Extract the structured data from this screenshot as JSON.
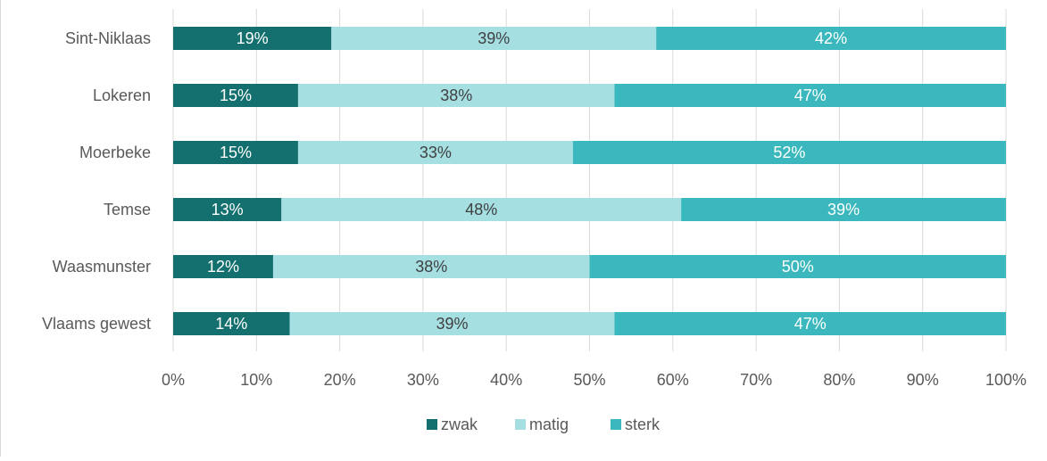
{
  "chart_data": {
    "type": "bar",
    "orientation": "horizontal",
    "stacked": "percent",
    "title": "",
    "xlabel": "",
    "ylabel": "",
    "categories": [
      "Sint-Niklaas",
      "Lokeren",
      "Moerbeke",
      "Temse",
      "Waasmunster",
      "Vlaams gewest"
    ],
    "series": [
      {
        "name": "zwak",
        "color": "#14706f",
        "label_color": "#ffffff",
        "values": [
          19,
          15,
          15,
          13,
          12,
          14
        ]
      },
      {
        "name": "matig",
        "color": "#a5dfe2",
        "label_color": "#404040",
        "values": [
          39,
          38,
          33,
          48,
          38,
          39
        ]
      },
      {
        "name": "sterk",
        "color": "#3bb8bd",
        "label_color": "#ffffff",
        "values": [
          42,
          47,
          52,
          39,
          50,
          47
        ]
      }
    ],
    "data_label_suffix": "%",
    "xlim": [
      0,
      100
    ],
    "xticks": [
      "0%",
      "10%",
      "20%",
      "30%",
      "40%",
      "50%",
      "60%",
      "70%",
      "80%",
      "90%",
      "100%"
    ],
    "grid": "vertical",
    "legend_position": "bottom"
  }
}
